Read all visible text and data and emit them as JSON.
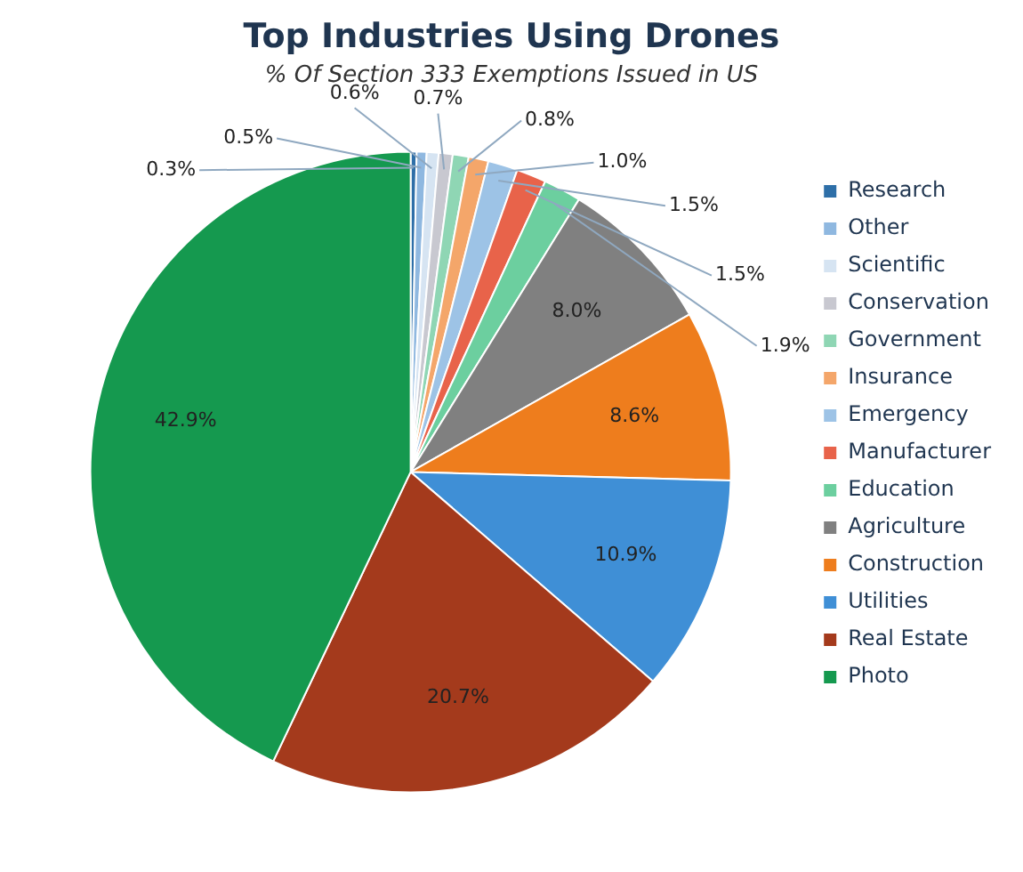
{
  "chart_data": {
    "type": "pie",
    "title": "Top Industries Using Drones",
    "subtitle": "% Of Section 333 Exemptions Issued in US",
    "categories": [
      "Research",
      "Other",
      "Scientific",
      "Conservation",
      "Government",
      "Insurance",
      "Emergency",
      "Manufacturer",
      "Education",
      "Agriculture",
      "Construction",
      "Utilities",
      "Real Estate",
      "Photo"
    ],
    "values": [
      0.3,
      0.5,
      0.6,
      0.7,
      0.8,
      1.0,
      1.5,
      1.5,
      1.9,
      8.0,
      8.6,
      10.9,
      20.7,
      42.9
    ],
    "colors": [
      "#2e6fa8",
      "#8fb8e0",
      "#d6e4f2",
      "#c8c8d0",
      "#8fd6b4",
      "#f4a66a",
      "#9dc3e6",
      "#e8634a",
      "#6ccf9f",
      "#808080",
      "#ee7d1d",
      "#3f8fd6",
      "#a43a1c",
      "#15994f"
    ],
    "value_labels": [
      "0.3%",
      "0.5%",
      "0.6%",
      "0.7%",
      "0.8%",
      "1.0%",
      "1.5%",
      "1.5%",
      "1.9%",
      "8.0%",
      "8.6%",
      "10.9%",
      "20.7%",
      "42.9%"
    ],
    "legend": "right"
  }
}
